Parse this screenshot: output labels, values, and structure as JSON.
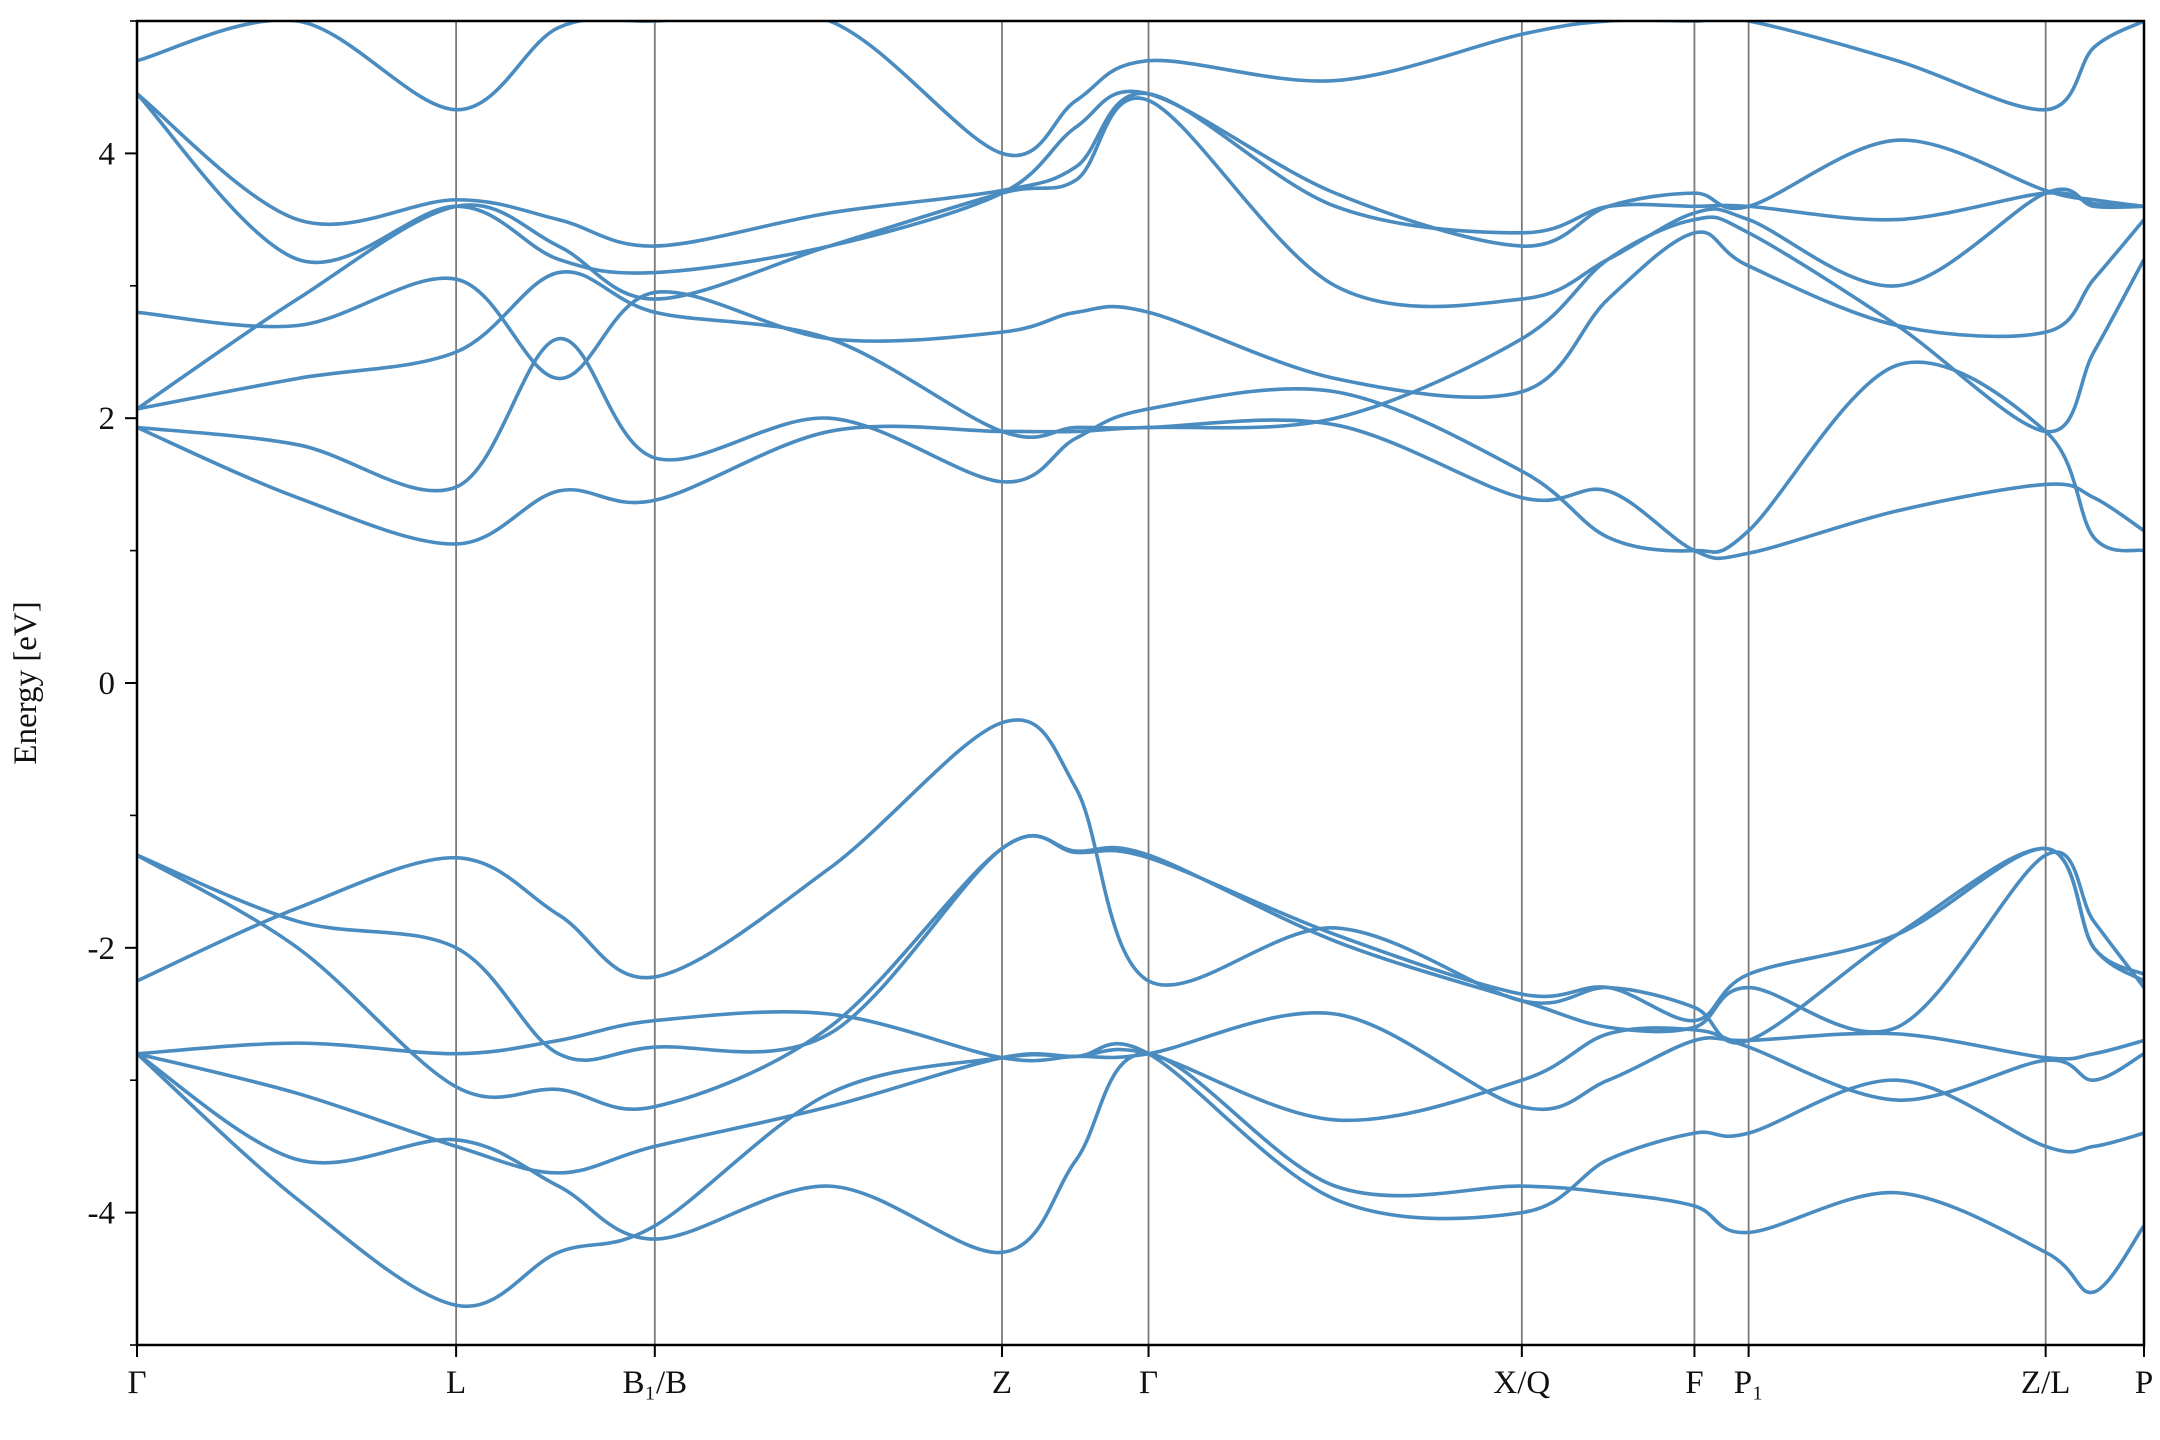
{
  "chart_data": {
    "type": "line",
    "ylabel": "Energy [eV]",
    "color": "#4a8cc0",
    "xlim": [
      0,
      1
    ],
    "ylim": [
      -5,
      5
    ],
    "yticks": [
      -4,
      -2,
      0,
      2,
      4
    ],
    "yminorticks": [
      -5,
      -3,
      -1,
      1,
      3,
      5
    ],
    "xticks": [
      {
        "value": 0,
        "label": "Γ"
      },
      {
        "value": 0.159,
        "label": "L"
      },
      {
        "value": 0.258,
        "label": "B₁/B"
      },
      {
        "value": 0.431,
        "label": "Z"
      },
      {
        "value": 0.504,
        "label": "Γ"
      },
      {
        "value": 0.69,
        "label": "X/Q"
      },
      {
        "value": 0.776,
        "label": "F"
      },
      {
        "value": 0.803,
        "label": "P₁"
      },
      {
        "value": 0.951,
        "label": "Z/L"
      },
      {
        "value": 1,
        "label": "P"
      }
    ],
    "grid": true,
    "x": [
      0,
      0.08,
      0.159,
      0.21,
      0.258,
      0.345,
      0.431,
      0.468,
      0.504,
      0.597,
      0.69,
      0.733,
      0.776,
      0.803,
      0.877,
      0.951,
      0.975,
      1.0
    ],
    "series": [
      {
        "values": [
          -2.25,
          -1.7,
          -1.32,
          -1.75,
          -2.22,
          -1.4,
          -0.3,
          -0.8,
          -2.25,
          -1.85,
          -2.4,
          -2.3,
          -2.45,
          -2.7,
          -1.9,
          -1.25,
          -2.0,
          -2.2
        ]
      },
      {
        "values": [
          -1.3,
          -1.8,
          -2.0,
          -2.8,
          -2.75,
          -2.65,
          -1.25,
          -1.28,
          -1.32,
          -1.9,
          -2.35,
          -2.3,
          -2.55,
          -2.2,
          -1.9,
          -1.25,
          -2.0,
          -2.25
        ]
      },
      {
        "values": [
          -1.3,
          -2.0,
          -3.05,
          -3.07,
          -3.2,
          -2.6,
          -1.25,
          -1.27,
          -1.3,
          -1.95,
          -2.4,
          -2.6,
          -2.6,
          -2.3,
          -2.6,
          -1.3,
          -1.8,
          -2.3
        ]
      },
      {
        "values": [
          -2.8,
          -2.72,
          -2.8,
          -2.7,
          -2.55,
          -2.5,
          -2.83,
          -2.82,
          -2.8,
          -2.5,
          -3.2,
          -3.0,
          -2.7,
          -2.7,
          -2.65,
          -2.83,
          -2.8,
          -2.7
        ]
      },
      {
        "values": [
          -2.8,
          -3.1,
          -3.5,
          -3.7,
          -3.5,
          -3.2,
          -2.83,
          -2.82,
          -2.8,
          -3.3,
          -3.0,
          -2.65,
          -2.62,
          -2.75,
          -3.15,
          -2.85,
          -3.0,
          -2.8
        ]
      },
      {
        "values": [
          -2.8,
          -3.6,
          -3.45,
          -3.8,
          -4.2,
          -3.8,
          -4.3,
          -3.6,
          -2.8,
          -3.8,
          -3.8,
          -3.85,
          -3.95,
          -4.15,
          -3.85,
          -4.3,
          -4.6,
          -4.1
        ]
      },
      {
        "values": [
          -2.8,
          -3.9,
          -4.7,
          -4.3,
          -4.1,
          -3.1,
          -2.83,
          -2.82,
          -2.8,
          -3.9,
          -4.0,
          -3.6,
          -3.4,
          -3.4,
          -3.0,
          -3.5,
          -3.5,
          -3.4
        ]
      },
      {
        "values": [
          1.93,
          1.4,
          1.05,
          1.45,
          1.38,
          1.9,
          1.9,
          1.9,
          1.93,
          1.95,
          1.4,
          1.45,
          1.0,
          0.98,
          1.3,
          1.5,
          1.4,
          1.15
        ]
      },
      {
        "values": [
          1.93,
          1.8,
          1.48,
          2.6,
          1.7,
          2.0,
          1.52,
          1.85,
          2.07,
          2.2,
          1.6,
          1.1,
          1.0,
          1.15,
          2.4,
          1.9,
          1.1,
          1.0
        ]
      },
      {
        "values": [
          2.07,
          2.3,
          2.5,
          3.1,
          2.8,
          2.6,
          1.9,
          1.93,
          1.93,
          2.0,
          2.6,
          3.2,
          3.5,
          3.4,
          2.7,
          1.9,
          2.5,
          3.2
        ]
      },
      {
        "values": [
          2.8,
          2.7,
          3.05,
          2.3,
          2.95,
          2.6,
          2.65,
          2.8,
          2.8,
          2.3,
          2.2,
          2.9,
          3.4,
          3.15,
          2.7,
          2.65,
          3.05,
          3.5
        ]
      },
      {
        "values": [
          2.07,
          2.9,
          3.6,
          3.3,
          2.9,
          3.3,
          3.7,
          3.8,
          4.4,
          3.0,
          2.9,
          3.2,
          3.55,
          3.5,
          3.0,
          3.7,
          3.6,
          3.6
        ]
      },
      {
        "values": [
          4.45,
          3.5,
          3.65,
          3.5,
          3.3,
          3.55,
          3.72,
          3.9,
          4.45,
          3.6,
          3.4,
          3.6,
          3.6,
          3.6,
          3.5,
          3.7,
          3.62,
          3.6
        ]
      },
      {
        "values": [
          4.45,
          3.2,
          3.6,
          3.2,
          3.1,
          3.3,
          3.7,
          4.2,
          4.45,
          3.7,
          3.3,
          3.6,
          3.7,
          3.6,
          4.1,
          3.72,
          3.65,
          3.6
        ]
      },
      {
        "values": [
          4.7,
          5.0,
          4.33,
          4.95,
          5.0,
          5.0,
          4.0,
          4.4,
          4.7,
          4.55,
          4.9,
          5.0,
          5.0,
          5.0,
          4.7,
          4.33,
          4.8,
          5.0
        ]
      }
    ]
  }
}
